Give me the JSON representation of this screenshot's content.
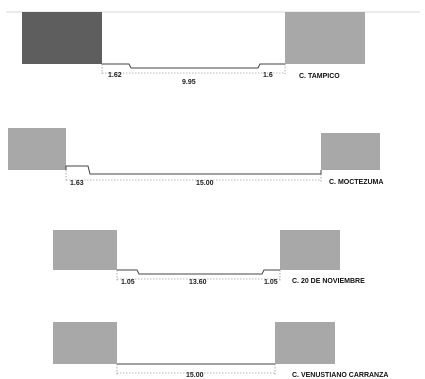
{
  "colors": {
    "block_dark": "#5e5e5e",
    "block_light": "#a8a8a8",
    "profile_line": "#444444",
    "top_rule": "#d9d9d9"
  },
  "sections": [
    {
      "street": "C. TAMPICO",
      "dims": [
        "1.62",
        "9.95",
        "1.6"
      ]
    },
    {
      "street": "C. MOCTEZUMA",
      "dims": [
        "1.63",
        "15.00"
      ]
    },
    {
      "street": "C. 20 DE NOVIEMBRE",
      "dims": [
        "1.05",
        "13.60",
        "1.05"
      ]
    },
    {
      "street": "C. VENUSTIANO CARRANZA",
      "dims": [
        "15.00"
      ]
    }
  ]
}
